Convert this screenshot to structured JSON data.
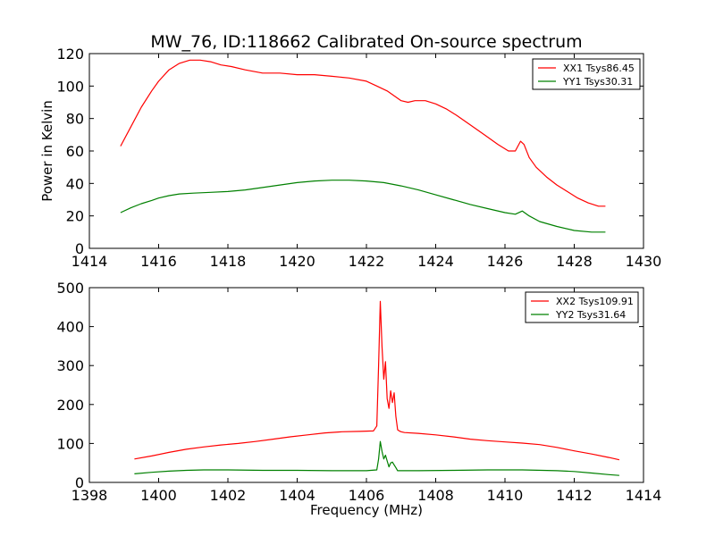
{
  "chart_data": [
    {
      "type": "line",
      "title": "MW_76, ID:118662 Calibrated On-source spectrum",
      "xlabel": "",
      "ylabel": "Power in Kelvin",
      "xlim": [
        1414,
        1430
      ],
      "ylim": [
        0,
        120
      ],
      "xticks": [
        1414,
        1416,
        1418,
        1420,
        1422,
        1424,
        1426,
        1428,
        1430
      ],
      "yticks": [
        0,
        20,
        40,
        60,
        80,
        100,
        120
      ],
      "legend_position": "top-right",
      "series": [
        {
          "name": "XX1 Tsys86.45",
          "color": "#ff0000",
          "x": [
            1414.9,
            1415.2,
            1415.5,
            1415.8,
            1416.0,
            1416.3,
            1416.6,
            1416.9,
            1417.2,
            1417.5,
            1417.8,
            1418.1,
            1418.5,
            1419.0,
            1419.5,
            1420.0,
            1420.5,
            1421.0,
            1421.5,
            1422.0,
            1422.3,
            1422.6,
            1422.8,
            1423.0,
            1423.2,
            1423.4,
            1423.7,
            1424.0,
            1424.3,
            1424.6,
            1425.0,
            1425.4,
            1425.8,
            1426.1,
            1426.3,
            1426.45,
            1426.55,
            1426.7,
            1426.9,
            1427.2,
            1427.5,
            1427.8,
            1428.1,
            1428.4,
            1428.7,
            1428.9
          ],
          "values": [
            63,
            75,
            87,
            97,
            103,
            110,
            114,
            116,
            116,
            115,
            113,
            112,
            110,
            108,
            108,
            107,
            107,
            106,
            105,
            103,
            100,
            97,
            94,
            91,
            90,
            91,
            91,
            89,
            86,
            82,
            76,
            70,
            64,
            60,
            60,
            66,
            64,
            56,
            50,
            44,
            39,
            35,
            31,
            28,
            26,
            26
          ]
        },
        {
          "name": "YY1 Tsys30.31",
          "color": "#008000",
          "x": [
            1414.9,
            1415.2,
            1415.5,
            1415.8,
            1416.0,
            1416.3,
            1416.6,
            1417.0,
            1417.5,
            1418.0,
            1418.5,
            1419.0,
            1419.5,
            1420.0,
            1420.5,
            1421.0,
            1421.5,
            1422.0,
            1422.5,
            1423.0,
            1423.5,
            1424.0,
            1424.5,
            1425.0,
            1425.5,
            1426.0,
            1426.3,
            1426.5,
            1426.7,
            1427.0,
            1427.5,
            1428.0,
            1428.5,
            1428.9
          ],
          "values": [
            22,
            25,
            27.5,
            29.5,
            31,
            32.5,
            33.5,
            34,
            34.5,
            35,
            36,
            37.5,
            39,
            40.5,
            41.5,
            42,
            42,
            41.5,
            40.5,
            38.5,
            36,
            33,
            30,
            27,
            24.5,
            22,
            21,
            23,
            20,
            16.5,
            13.5,
            11,
            10,
            10
          ]
        }
      ]
    },
    {
      "type": "line",
      "title": "",
      "xlabel": "Frequency (MHz)",
      "ylabel": "",
      "xlim": [
        1398,
        1414
      ],
      "ylim": [
        0,
        500
      ],
      "xticks": [
        1398,
        1400,
        1402,
        1404,
        1406,
        1408,
        1410,
        1412,
        1414
      ],
      "yticks": [
        0,
        100,
        200,
        300,
        400,
        500
      ],
      "legend_position": "top-right",
      "series": [
        {
          "name": "XX2 Tsys109.91",
          "color": "#ff0000",
          "x": [
            1399.3,
            1399.8,
            1400.3,
            1400.8,
            1401.3,
            1401.8,
            1402.3,
            1402.8,
            1403.3,
            1403.8,
            1404.3,
            1404.8,
            1405.3,
            1405.8,
            1406.2,
            1406.3,
            1406.35,
            1406.4,
            1406.45,
            1406.5,
            1406.55,
            1406.6,
            1406.65,
            1406.7,
            1406.75,
            1406.8,
            1406.85,
            1406.9,
            1406.95,
            1407.0,
            1407.1,
            1407.5,
            1408.0,
            1408.5,
            1409.0,
            1409.5,
            1410.0,
            1410.5,
            1411.0,
            1411.5,
            1412.0,
            1412.5,
            1413.0,
            1413.3
          ],
          "values": [
            60,
            68,
            77,
            85,
            91,
            96,
            100,
            105,
            111,
            117,
            122,
            127,
            130,
            131,
            132,
            145,
            300,
            465,
            350,
            265,
            310,
            215,
            190,
            235,
            205,
            230,
            170,
            135,
            132,
            130,
            128,
            126,
            122,
            117,
            111,
            107,
            104,
            101,
            97,
            90,
            81,
            73,
            64,
            58
          ]
        },
        {
          "name": "YY2 Tsys31.64",
          "color": "#008000",
          "x": [
            1399.3,
            1399.8,
            1400.3,
            1400.8,
            1401.3,
            1402.0,
            1403.0,
            1404.0,
            1405.0,
            1406.0,
            1406.3,
            1406.35,
            1406.4,
            1406.45,
            1406.5,
            1406.55,
            1406.6,
            1406.65,
            1406.7,
            1406.75,
            1406.8,
            1406.85,
            1406.9,
            1407.0,
            1407.5,
            1408.5,
            1409.5,
            1410.5,
            1411.5,
            1412.0,
            1412.5,
            1413.0,
            1413.3
          ],
          "values": [
            22,
            26,
            29,
            31,
            32,
            32,
            31,
            31,
            30,
            30,
            32,
            60,
            105,
            80,
            60,
            70,
            55,
            40,
            50,
            52,
            45,
            38,
            30,
            30,
            30,
            31,
            32,
            32,
            30,
            28,
            24,
            20,
            18
          ]
        }
      ]
    }
  ]
}
